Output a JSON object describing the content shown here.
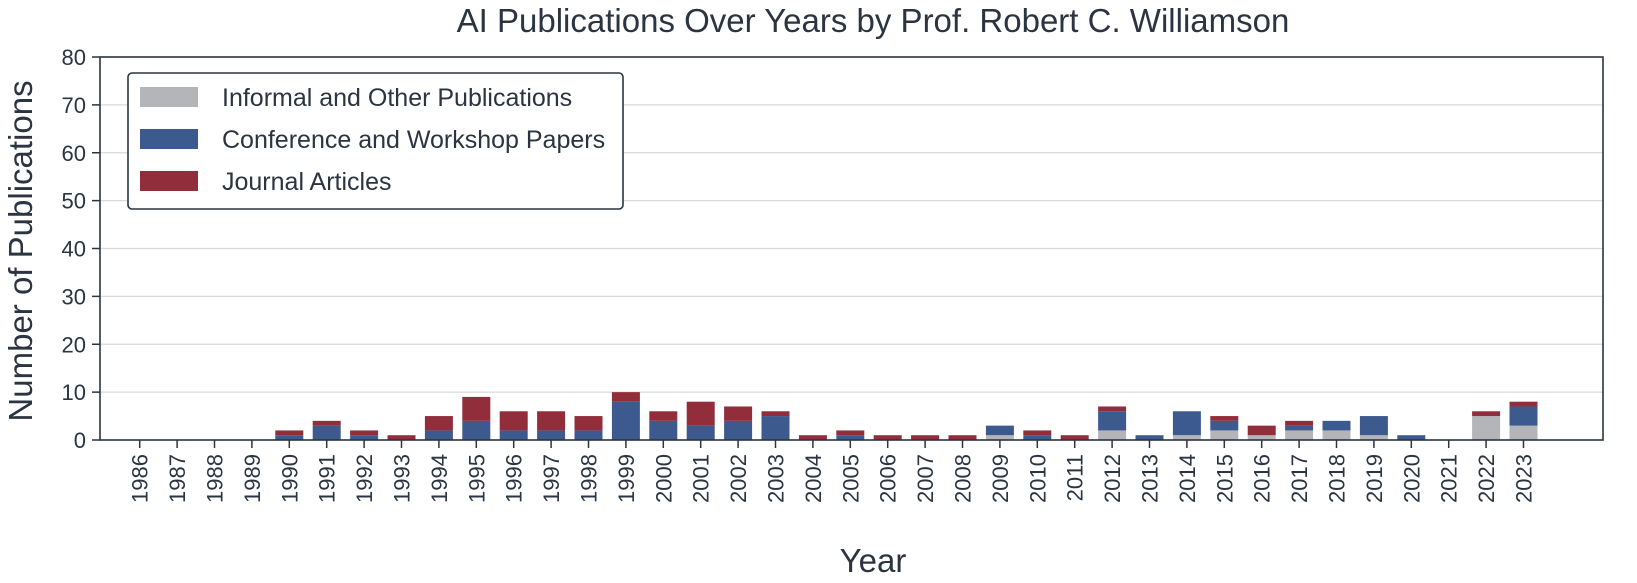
{
  "chart_data": {
    "type": "bar",
    "stacked": true,
    "title": "AI Publications Over Years by Prof. Robert C. Williamson",
    "xlabel": "Year",
    "ylabel": "Number of Publications",
    "ylim": [
      0,
      80
    ],
    "yticks": [
      0,
      10,
      20,
      30,
      40,
      50,
      60,
      70,
      80
    ],
    "grid": "horizontal",
    "legend_position": "top-left",
    "categories": [
      "1986",
      "1987",
      "1988",
      "1989",
      "1990",
      "1991",
      "1992",
      "1993",
      "1994",
      "1995",
      "1996",
      "1997",
      "1998",
      "1999",
      "2000",
      "2001",
      "2002",
      "2003",
      "2004",
      "2005",
      "2006",
      "2007",
      "2008",
      "2009",
      "2010",
      "2011",
      "2012",
      "2013",
      "2014",
      "2015",
      "2016",
      "2017",
      "2018",
      "2019",
      "2020",
      "2021",
      "2022",
      "2023"
    ],
    "series": [
      {
        "name": "Informal and Other Publications",
        "color": "#b3b5b8",
        "values": [
          0,
          0,
          0,
          0,
          0,
          0,
          0,
          0,
          0,
          0,
          0,
          0,
          0,
          0,
          0,
          0,
          0,
          0,
          0,
          0,
          0,
          0,
          0,
          1,
          0,
          0,
          2,
          0,
          1,
          2,
          1,
          2,
          2,
          1,
          0,
          0,
          5,
          3
        ]
      },
      {
        "name": "Conference and Workshop Papers",
        "color": "#3d5a8f",
        "values": [
          0,
          0,
          0,
          0,
          1,
          3,
          1,
          0,
          2,
          4,
          2,
          2,
          2,
          8,
          4,
          3,
          4,
          5,
          0,
          1,
          0,
          0,
          0,
          2,
          1,
          0,
          4,
          1,
          5,
          2,
          0,
          1,
          2,
          4,
          1,
          0,
          0,
          4
        ]
      },
      {
        "name": "Journal Articles",
        "color": "#922e3c",
        "values": [
          0,
          0,
          0,
          0,
          1,
          1,
          1,
          1,
          3,
          5,
          4,
          4,
          3,
          2,
          2,
          5,
          3,
          1,
          1,
          1,
          1,
          1,
          1,
          0,
          1,
          1,
          1,
          0,
          0,
          1,
          2,
          1,
          0,
          0,
          0,
          0,
          1,
          1
        ]
      }
    ]
  }
}
